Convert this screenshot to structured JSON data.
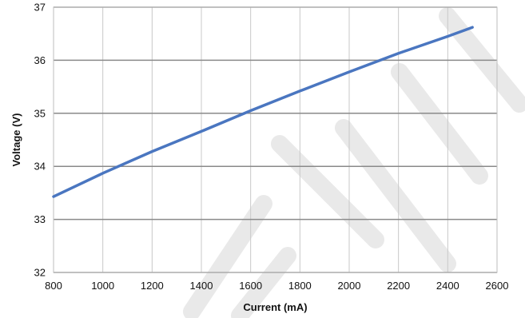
{
  "chart_data": {
    "type": "line",
    "xlabel": "Current (mA)",
    "ylabel": "Voltage (V)",
    "xlim": [
      800,
      2600
    ],
    "ylim": [
      32,
      37
    ],
    "xticks": [
      800,
      1000,
      1200,
      1400,
      1600,
      1800,
      2000,
      2200,
      2400,
      2600
    ],
    "yticks": [
      32,
      33,
      34,
      35,
      36,
      37
    ],
    "grid": true,
    "legend": "none",
    "series": [
      {
        "color": "#4a76c0",
        "x": [
          800,
          1000,
          1200,
          1400,
          1600,
          1800,
          2000,
          2200,
          2400,
          2500
        ],
        "y": [
          33.43,
          33.87,
          34.28,
          34.66,
          35.05,
          35.42,
          35.78,
          36.13,
          36.45,
          36.62
        ]
      }
    ]
  }
}
